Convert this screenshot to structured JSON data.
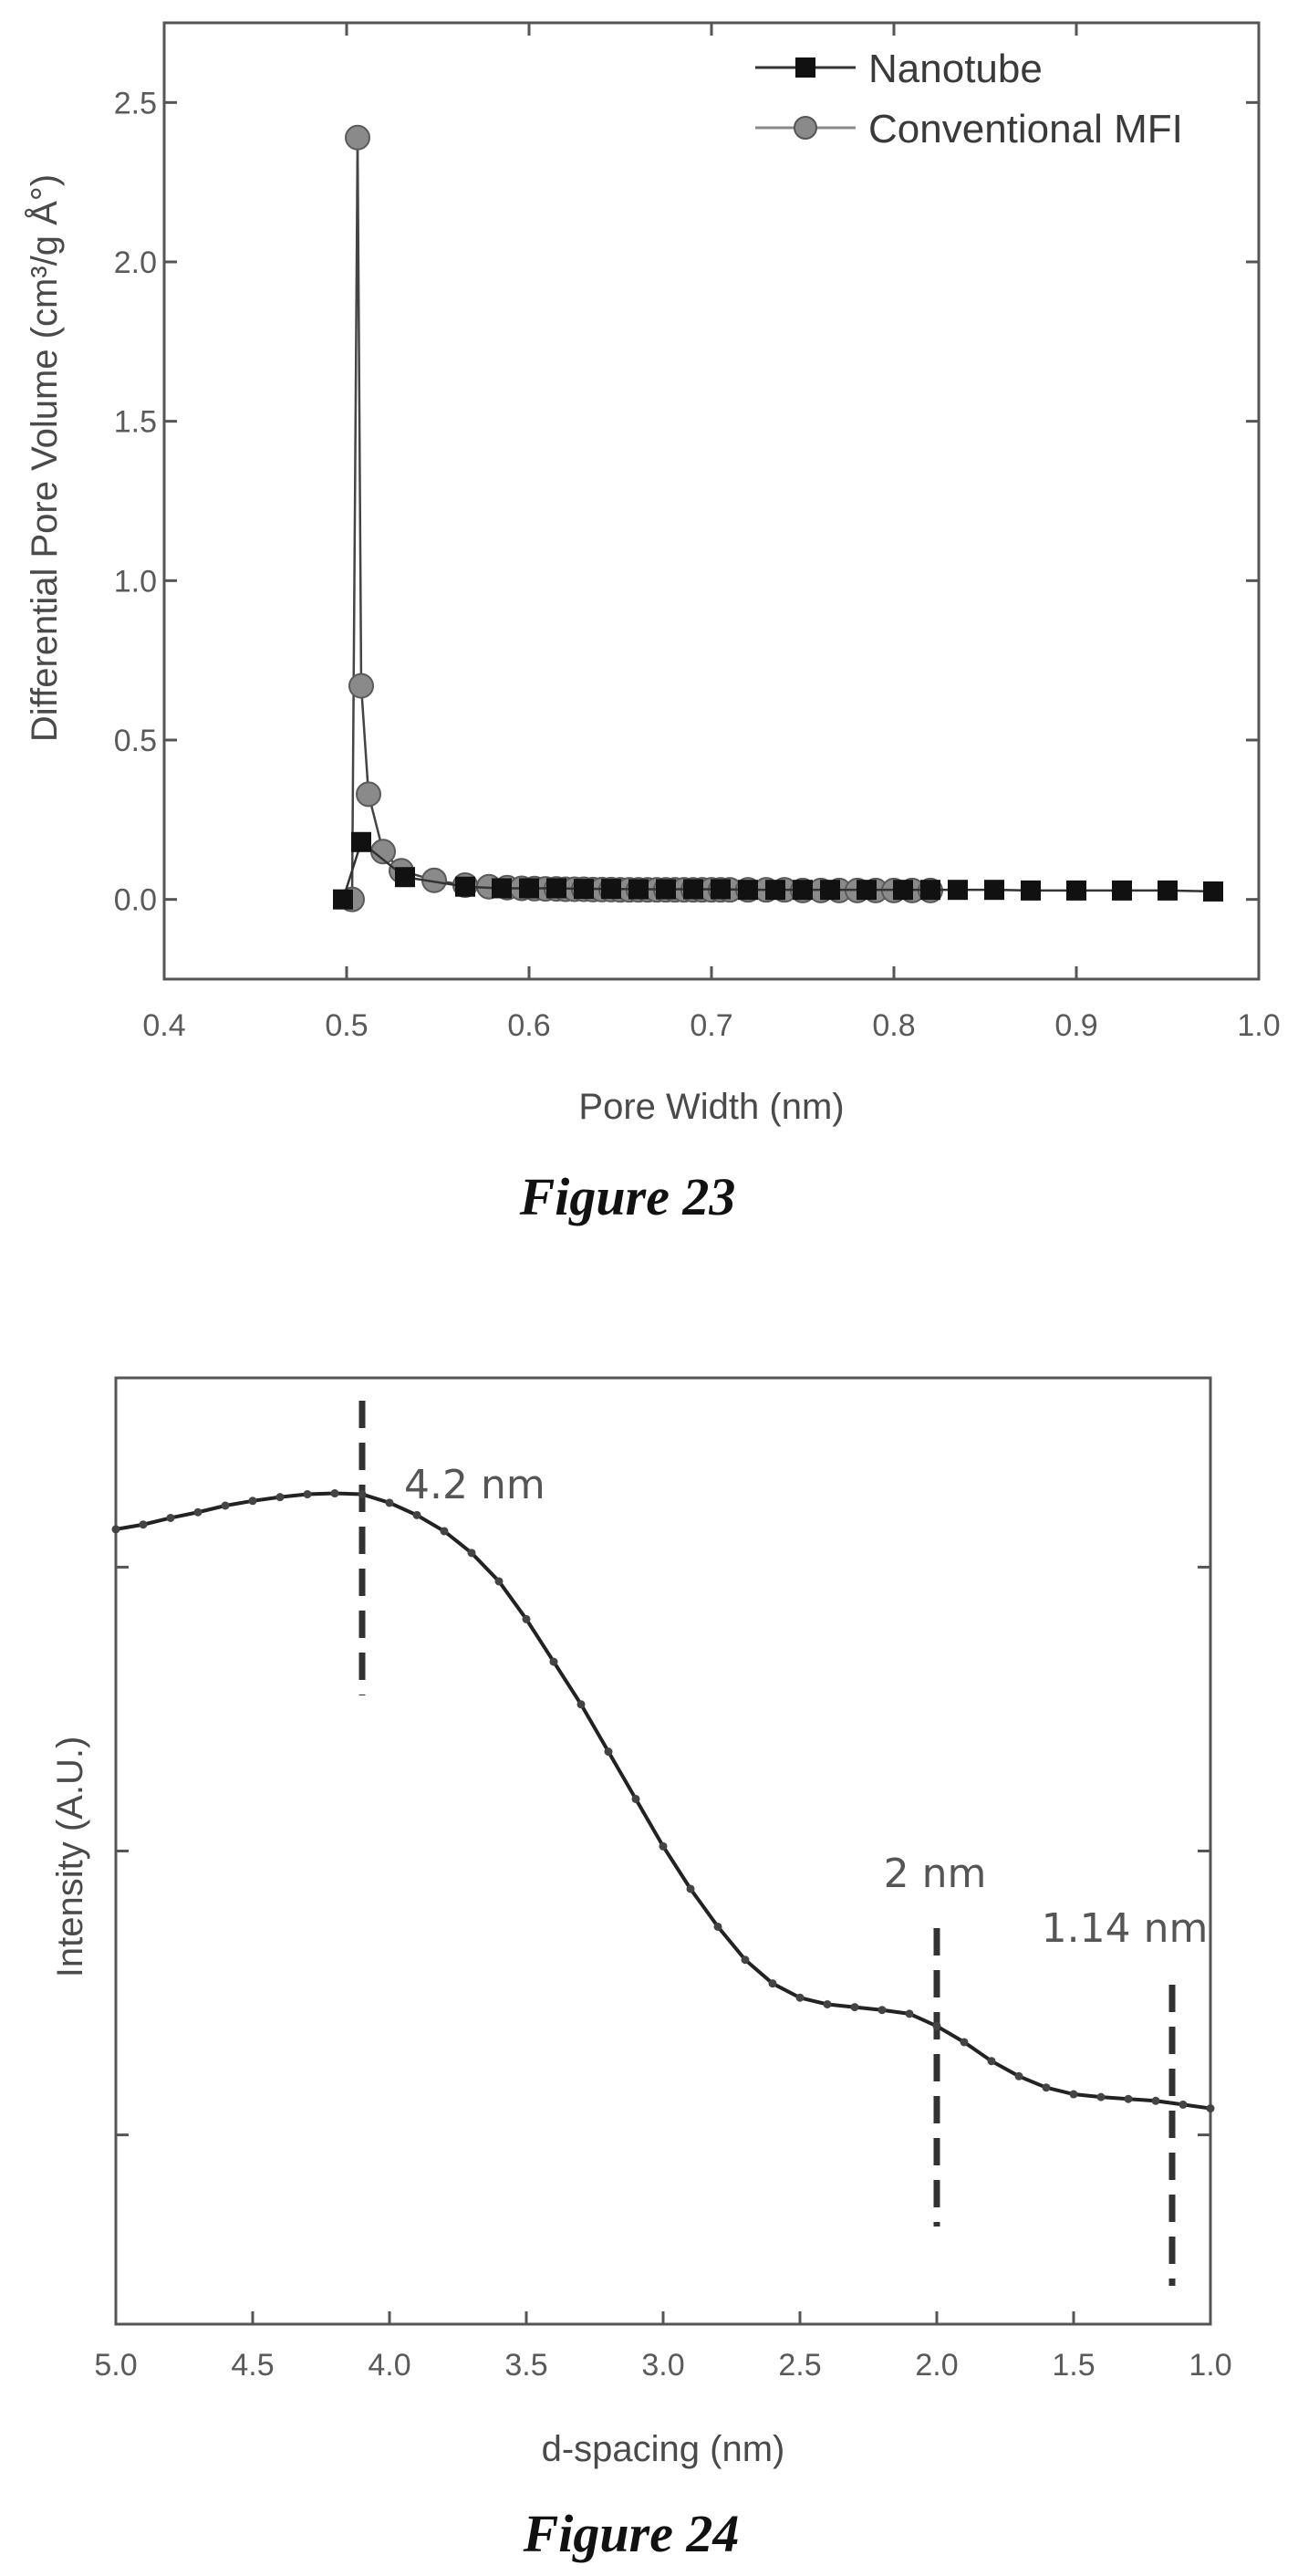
{
  "chart_data": [
    {
      "type": "scatter",
      "caption": "Figure 23",
      "xlabel": "Pore Width (nm)",
      "ylabel": "Differential Pore Volume (cm³/g Å°)",
      "xlim": [
        0.4,
        1.0
      ],
      "ylim": [
        -0.25,
        2.75
      ],
      "xticks": [
        0.4,
        0.5,
        0.6,
        0.7,
        0.8,
        0.9,
        1.0
      ],
      "xtick_labels": [
        "0.4",
        "0.5",
        "0.6",
        "0.7",
        "0.8",
        "0.9",
        "1.0"
      ],
      "yticks": [
        0.0,
        0.5,
        1.0,
        1.5,
        2.0,
        2.5
      ],
      "ytick_labels": [
        "0.0",
        "0.5",
        "1.0",
        "1.5",
        "2.0",
        "2.5"
      ],
      "legend": "top-right",
      "grid": false,
      "series": [
        {
          "name": "Nanotube",
          "marker": "square",
          "color": "#111111",
          "x": [
            0.498,
            0.508,
            0.532,
            0.565,
            0.585,
            0.6,
            0.615,
            0.63,
            0.645,
            0.66,
            0.675,
            0.69,
            0.705,
            0.72,
            0.735,
            0.75,
            0.765,
            0.785,
            0.805,
            0.82,
            0.835,
            0.855,
            0.875,
            0.9,
            0.925,
            0.95,
            0.975
          ],
          "y": [
            0.0,
            0.18,
            0.07,
            0.04,
            0.035,
            0.035,
            0.035,
            0.033,
            0.033,
            0.032,
            0.032,
            0.032,
            0.032,
            0.03,
            0.03,
            0.03,
            0.03,
            0.03,
            0.03,
            0.03,
            0.03,
            0.03,
            0.028,
            0.028,
            0.028,
            0.028,
            0.025
          ]
        },
        {
          "name": "Conventional MFI",
          "marker": "circle",
          "color": "#8a8a8a",
          "x": [
            0.503,
            0.506,
            0.508,
            0.512,
            0.52,
            0.53,
            0.548,
            0.565,
            0.578,
            0.588,
            0.596,
            0.603,
            0.609,
            0.615,
            0.62,
            0.625,
            0.63,
            0.635,
            0.64,
            0.645,
            0.65,
            0.655,
            0.66,
            0.665,
            0.67,
            0.675,
            0.68,
            0.685,
            0.69,
            0.695,
            0.7,
            0.705,
            0.71,
            0.72,
            0.73,
            0.74,
            0.75,
            0.76,
            0.77,
            0.78,
            0.79,
            0.8,
            0.81,
            0.82
          ],
          "y": [
            0.0,
            2.39,
            0.67,
            0.33,
            0.15,
            0.09,
            0.06,
            0.045,
            0.04,
            0.037,
            0.035,
            0.034,
            0.033,
            0.033,
            0.032,
            0.032,
            0.032,
            0.031,
            0.031,
            0.031,
            0.03,
            0.03,
            0.03,
            0.03,
            0.03,
            0.03,
            0.03,
            0.03,
            0.03,
            0.03,
            0.03,
            0.03,
            0.03,
            0.03,
            0.03,
            0.03,
            0.028,
            0.028,
            0.028,
            0.028,
            0.028,
            0.028,
            0.028,
            0.028
          ]
        }
      ]
    },
    {
      "type": "line",
      "caption": "Figure 24",
      "xlabel": "d-spacing (nm)",
      "ylabel": "Intensity (A.U.)",
      "xlim": [
        5.0,
        1.0
      ],
      "x_reversed": true,
      "xticks": [
        5.0,
        4.5,
        4.0,
        3.5,
        3.0,
        2.5,
        2.0,
        1.5,
        1.0
      ],
      "xtick_labels": [
        "5.0",
        "4.5",
        "4.0",
        "3.5",
        "3.0",
        "2.5",
        "2.0",
        "1.5",
        "1.0"
      ],
      "ylim": [
        0,
        1
      ],
      "y_tick_fractions": [
        0.2,
        0.5,
        0.8
      ],
      "grid": false,
      "series": [
        {
          "color": "#222222",
          "x": [
            5.0,
            4.9,
            4.8,
            4.7,
            4.6,
            4.5,
            4.4,
            4.3,
            4.2,
            4.1,
            4.0,
            3.9,
            3.8,
            3.7,
            3.6,
            3.5,
            3.4,
            3.3,
            3.2,
            3.1,
            3.0,
            2.9,
            2.8,
            2.7,
            2.6,
            2.5,
            2.4,
            2.3,
            2.2,
            2.1,
            2.0,
            1.9,
            1.8,
            1.7,
            1.6,
            1.5,
            1.4,
            1.3,
            1.2,
            1.1,
            1.0
          ],
          "y": [
            0.84,
            0.845,
            0.852,
            0.858,
            0.865,
            0.87,
            0.874,
            0.877,
            0.878,
            0.877,
            0.868,
            0.855,
            0.838,
            0.815,
            0.785,
            0.745,
            0.7,
            0.655,
            0.605,
            0.555,
            0.505,
            0.46,
            0.42,
            0.385,
            0.36,
            0.345,
            0.338,
            0.335,
            0.332,
            0.328,
            0.315,
            0.298,
            0.278,
            0.262,
            0.25,
            0.243,
            0.24,
            0.238,
            0.236,
            0.232,
            0.228
          ]
        }
      ],
      "annotations": [
        {
          "x": 4.1,
          "label": "4.2 nm"
        },
        {
          "x": 2.0,
          "label": "2 nm"
        },
        {
          "x": 1.14,
          "label": "1.14 nm"
        }
      ]
    }
  ]
}
